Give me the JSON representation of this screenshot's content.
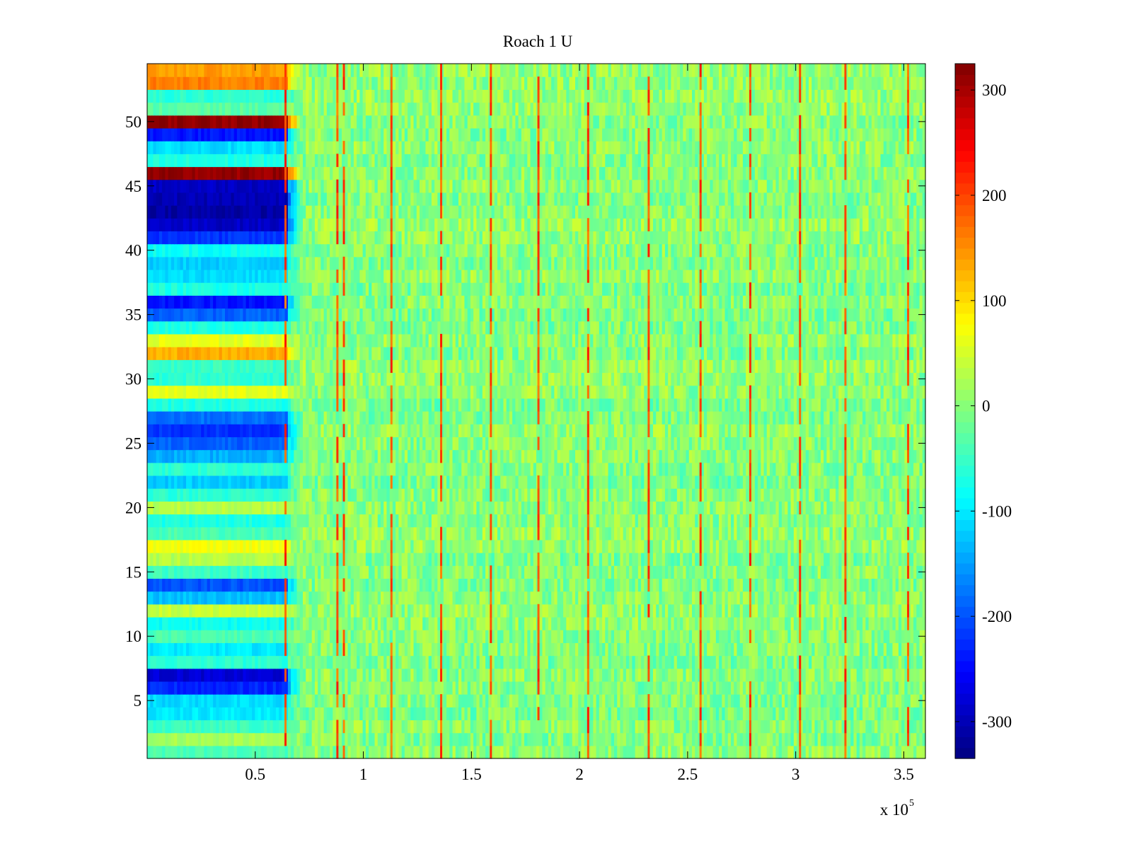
{
  "chart_data": {
    "type": "heatmap",
    "title": "Roach 1 U",
    "xlabel": "",
    "ylabel": "",
    "x_exponent_label": "x 10",
    "x_exponent": "5",
    "xlim": [
      0,
      3.6
    ],
    "ylim": [
      0.5,
      54.5
    ],
    "x_ticks": [
      0.5,
      1,
      1.5,
      2,
      2.5,
      3,
      3.5
    ],
    "x_tick_labels": [
      "0.5",
      "1",
      "1.5",
      "2",
      "2.5",
      "3",
      "3.5"
    ],
    "y_ticks": [
      5,
      10,
      15,
      20,
      25,
      30,
      35,
      40,
      45,
      50
    ],
    "y_tick_labels": [
      "5",
      "10",
      "15",
      "20",
      "25",
      "30",
      "35",
      "40",
      "45",
      "50"
    ],
    "rows": 54,
    "colormap": "jet",
    "clim": [
      -335,
      325
    ],
    "colorbar_ticks": [
      300,
      200,
      100,
      0,
      -100,
      -200,
      -300
    ],
    "colorbar_tick_labels": [
      "300",
      "200",
      "100",
      "0",
      "-100",
      "-200",
      "-300"
    ],
    "initial_region_end_x": 0.65,
    "transition_end_x": 0.72,
    "background_value_range": [
      -40,
      40
    ],
    "spike_columns_x": [
      0.64,
      0.88,
      0.91,
      1.13,
      1.36,
      1.59,
      1.81,
      2.04,
      2.32,
      2.56,
      2.79,
      3.02,
      3.23,
      3.52
    ],
    "spike_value": 230,
    "initial_row_values": [
      {
        "row": 1,
        "value": -40
      },
      {
        "row": 2,
        "value": 20
      },
      {
        "row": 3,
        "value": -50
      },
      {
        "row": 4,
        "value": -100
      },
      {
        "row": 5,
        "value": -110
      },
      {
        "row": 6,
        "value": -230
      },
      {
        "row": 7,
        "value": -280
      },
      {
        "row": 8,
        "value": -60
      },
      {
        "row": 9,
        "value": -100
      },
      {
        "row": 10,
        "value": -40
      },
      {
        "row": 11,
        "value": -80
      },
      {
        "row": 12,
        "value": 40
      },
      {
        "row": 13,
        "value": -130
      },
      {
        "row": 14,
        "value": -200
      },
      {
        "row": 15,
        "value": -50
      },
      {
        "row": 16,
        "value": 30
      },
      {
        "row": 17,
        "value": 70
      },
      {
        "row": 18,
        "value": -40
      },
      {
        "row": 19,
        "value": -70
      },
      {
        "row": 20,
        "value": 30
      },
      {
        "row": 21,
        "value": -60
      },
      {
        "row": 22,
        "value": -120
      },
      {
        "row": 23,
        "value": -60
      },
      {
        "row": 24,
        "value": -140
      },
      {
        "row": 25,
        "value": -190
      },
      {
        "row": 26,
        "value": -220
      },
      {
        "row": 27,
        "value": -180
      },
      {
        "row": 28,
        "value": -70
      },
      {
        "row": 29,
        "value": 60
      },
      {
        "row": 30,
        "value": -60
      },
      {
        "row": 31,
        "value": -50
      },
      {
        "row": 32,
        "value": 130
      },
      {
        "row": 33,
        "value": 60
      },
      {
        "row": 34,
        "value": -70
      },
      {
        "row": 35,
        "value": -190
      },
      {
        "row": 36,
        "value": -240
      },
      {
        "row": 37,
        "value": -70
      },
      {
        "row": 38,
        "value": -110
      },
      {
        "row": 39,
        "value": -120
      },
      {
        "row": 40,
        "value": -80
      },
      {
        "row": 41,
        "value": -220
      },
      {
        "row": 42,
        "value": -290
      },
      {
        "row": 43,
        "value": -310
      },
      {
        "row": 44,
        "value": -300
      },
      {
        "row": 45,
        "value": -290
      },
      {
        "row": 46,
        "value": 310
      },
      {
        "row": 47,
        "value": -70
      },
      {
        "row": 48,
        "value": -110
      },
      {
        "row": 49,
        "value": -240
      },
      {
        "row": 50,
        "value": 315
      },
      {
        "row": 51,
        "value": -30
      },
      {
        "row": 52,
        "value": -60
      },
      {
        "row": 53,
        "value": 160
      },
      {
        "row": 54,
        "value": 140
      }
    ]
  }
}
